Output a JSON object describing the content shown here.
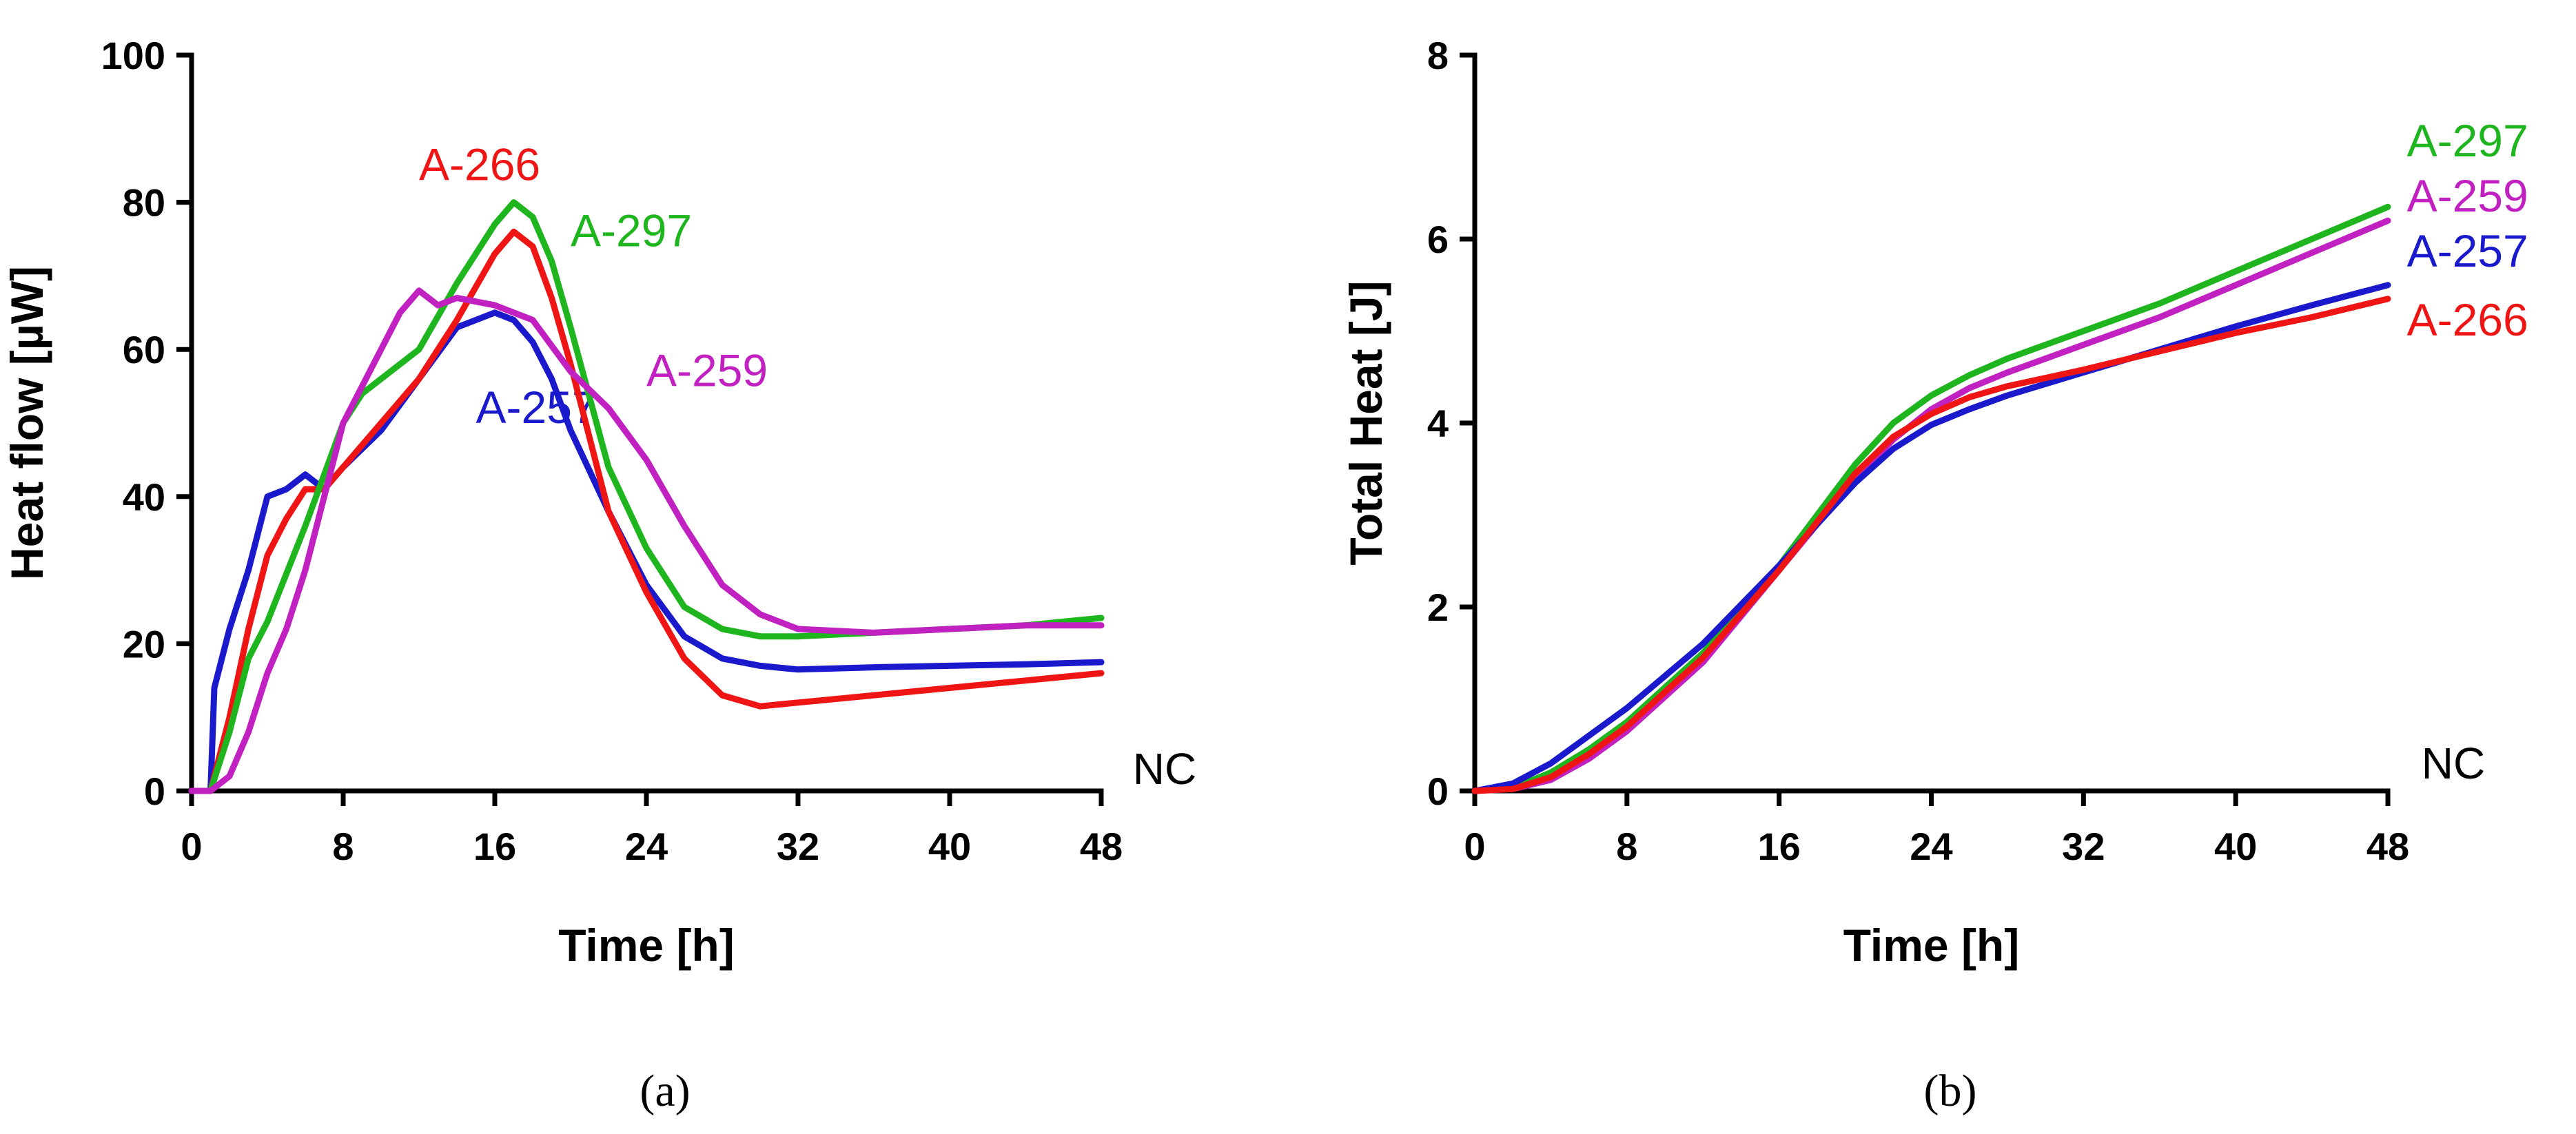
{
  "chart_data": [
    {
      "type": "line",
      "title": "",
      "xlabel": "Time [h]",
      "ylabel": "Heat flow [µW]",
      "xlim": [
        0,
        48
      ],
      "ylim": [
        0,
        100
      ],
      "xticks": [
        0,
        8,
        16,
        24,
        32,
        40,
        48
      ],
      "yticks": [
        0,
        20,
        40,
        60,
        80,
        100
      ],
      "annotation": "NC",
      "caption": "(a)",
      "series": [
        {
          "name": "A-257",
          "color": "#1a1acc",
          "x": [
            0,
            1,
            1.2,
            2,
            3,
            4,
            5,
            6,
            7,
            8,
            10,
            12,
            14,
            16,
            17,
            18,
            19,
            20,
            22,
            24,
            26,
            28,
            30,
            32,
            36,
            40,
            44,
            48
          ],
          "y": [
            0,
            0,
            14,
            22,
            30,
            40,
            41,
            43,
            41,
            44,
            49,
            56,
            63,
            65,
            64,
            61,
            56,
            49,
            38,
            28,
            21,
            18,
            17,
            16.5,
            16.8,
            17,
            17.2,
            17.5
          ],
          "label_at": [
            15,
            50
          ]
        },
        {
          "name": "A-266",
          "color": "#f01515",
          "x": [
            0,
            1,
            2,
            3,
            4,
            5,
            6,
            7,
            8,
            10,
            12,
            14,
            16,
            17,
            18,
            19,
            20,
            21,
            22,
            24,
            26,
            28,
            30,
            32,
            36,
            40,
            44,
            48
          ],
          "y": [
            0,
            0,
            10,
            22,
            32,
            37,
            41,
            41,
            44,
            50,
            56,
            64,
            73,
            76,
            74,
            67,
            58,
            48,
            38,
            27,
            18,
            13,
            11.5,
            12,
            13,
            14,
            15,
            16
          ],
          "label_at": [
            12,
            83
          ]
        },
        {
          "name": "A-297",
          "color": "#1fb51f",
          "x": [
            0,
            1,
            2,
            3,
            4,
            6,
            8,
            9,
            10,
            12,
            14,
            16,
            17,
            18,
            19,
            20,
            22,
            24,
            26,
            28,
            30,
            32,
            36,
            40,
            44,
            48
          ],
          "y": [
            0,
            0,
            8,
            18,
            23,
            36,
            50,
            54,
            56,
            60,
            69,
            77,
            80,
            78,
            72,
            63,
            44,
            33,
            25,
            22,
            21,
            21,
            21.5,
            22,
            22.5,
            23.5
          ],
          "label_at": [
            20,
            74
          ]
        },
        {
          "name": "A-259",
          "color": "#c021c0",
          "x": [
            0,
            1,
            2,
            3,
            4,
            5,
            6,
            8,
            10,
            11,
            12,
            13,
            14,
            16,
            18,
            20,
            22,
            24,
            26,
            28,
            30,
            32,
            36,
            40,
            44,
            48
          ],
          "y": [
            0,
            0,
            2,
            8,
            16,
            22,
            30,
            50,
            60,
            65,
            68,
            66,
            67,
            66,
            64,
            57,
            52,
            45,
            36,
            28,
            24,
            22,
            21.5,
            22,
            22.5,
            22.5
          ],
          "label_at": [
            24,
            55
          ]
        }
      ]
    },
    {
      "type": "line",
      "title": "",
      "xlabel": "Time [h]",
      "ylabel": "Total Heat [J]",
      "xlim": [
        0,
        48
      ],
      "ylim": [
        0,
        8
      ],
      "xticks": [
        0,
        8,
        16,
        24,
        32,
        40,
        48
      ],
      "yticks": [
        0,
        2,
        4,
        6,
        8
      ],
      "annotation": "NC",
      "caption": "(b)",
      "series": [
        {
          "name": "A-297",
          "color": "#1fb51f",
          "x": [
            0,
            2,
            4,
            6,
            8,
            12,
            16,
            20,
            22,
            24,
            26,
            28,
            32,
            36,
            40,
            44,
            48
          ],
          "y": [
            0,
            0.03,
            0.2,
            0.45,
            0.75,
            1.5,
            2.45,
            3.55,
            4.0,
            4.3,
            4.52,
            4.7,
            5.0,
            5.3,
            5.65,
            6.0,
            6.35
          ],
          "label_at": [
            49,
            6.9
          ]
        },
        {
          "name": "A-259",
          "color": "#c021c0",
          "x": [
            0,
            2,
            4,
            6,
            8,
            12,
            16,
            20,
            22,
            24,
            26,
            28,
            32,
            36,
            40,
            44,
            48
          ],
          "y": [
            0,
            0.02,
            0.12,
            0.35,
            0.65,
            1.4,
            2.4,
            3.4,
            3.82,
            4.15,
            4.38,
            4.55,
            4.85,
            5.15,
            5.5,
            5.85,
            6.2
          ],
          "label_at": [
            49,
            6.3
          ]
        },
        {
          "name": "A-257",
          "color": "#1a1acc",
          "x": [
            0,
            2,
            4,
            6,
            8,
            12,
            16,
            20,
            22,
            24,
            26,
            28,
            32,
            36,
            40,
            44,
            48
          ],
          "y": [
            0,
            0.08,
            0.3,
            0.6,
            0.9,
            1.6,
            2.45,
            3.35,
            3.72,
            3.98,
            4.15,
            4.3,
            4.55,
            4.8,
            5.05,
            5.28,
            5.5
          ],
          "label_at": [
            49,
            5.7
          ]
        },
        {
          "name": "A-266",
          "color": "#f01515",
          "x": [
            0,
            2,
            4,
            6,
            8,
            12,
            16,
            20,
            22,
            24,
            26,
            28,
            32,
            36,
            40,
            44,
            48
          ],
          "y": [
            0,
            0.02,
            0.15,
            0.4,
            0.7,
            1.45,
            2.4,
            3.45,
            3.85,
            4.1,
            4.28,
            4.4,
            4.58,
            4.78,
            4.98,
            5.15,
            5.35
          ],
          "label_at": [
            49,
            4.95
          ]
        }
      ]
    }
  ]
}
